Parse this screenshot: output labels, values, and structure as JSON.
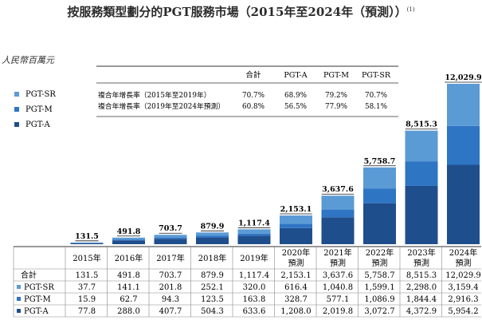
{
  "title": "按服務類型劃分的PGT服務市場（2015年至2024年（預測））",
  "title_note": "(1)",
  "unit_label": "人民幣百萬元",
  "colors": {
    "pgt_sr": "#5b9bd5",
    "pgt_m": "#2e75c4",
    "pgt_a": "#1f4e8c",
    "rule": "#333333",
    "table_line": "#888888"
  },
  "cagr_table": {
    "headers": [
      "合計",
      "PGT-A",
      "PGT-M",
      "PGT-SR"
    ],
    "rows": [
      {
        "label": "複合年增長率（2015年至2019年）",
        "values": [
          "70.7%",
          "68.9%",
          "79.2%",
          "70.7%"
        ]
      },
      {
        "label": "複合年增長率（2019年至2024年預測）",
        "values": [
          "60.8%",
          "56.5%",
          "77.9%",
          "58.1%"
        ]
      }
    ]
  },
  "chart_data": {
    "type": "bar",
    "stacked": true,
    "title": "按服務類型劃分的PGT服務市場（2015年至2024年（預測））",
    "ylabel": "人民幣百萬元",
    "categories": [
      "2015年",
      "2016年",
      "2017年",
      "2018年",
      "2019年",
      "2020年預測",
      "2021年預測",
      "2022年預測",
      "2023年預測",
      "2024年預測"
    ],
    "category_lines": [
      [
        "2015年"
      ],
      [
        "2016年"
      ],
      [
        "2017年"
      ],
      [
        "2018年"
      ],
      [
        "2019年"
      ],
      [
        "2020年",
        "預測"
      ],
      [
        "2021年",
        "預測"
      ],
      [
        "2022年",
        "預測"
      ],
      [
        "2023年",
        "預測"
      ],
      [
        "2024年",
        "預測"
      ]
    ],
    "totals": [
      131.5,
      491.8,
      703.7,
      879.9,
      1117.4,
      2153.1,
      3637.6,
      5758.7,
      8515.3,
      12029.9
    ],
    "total_labels": [
      "131.5",
      "491.8",
      "703.7",
      "879.9",
      "1,117.4",
      "2,153.1",
      "3,637.6",
      "5,758.7",
      "8,515.3",
      "12,029.9"
    ],
    "series": [
      {
        "name": "PGT-A",
        "values": [
          77.8,
          288.0,
          407.7,
          504.3,
          633.6,
          1208.0,
          2019.8,
          3072.7,
          4372.9,
          5954.2
        ],
        "labels": [
          "77.8",
          "288.0",
          "407.7",
          "504.3",
          "633.6",
          "1,208.0",
          "2,019.8",
          "3,072.7",
          "4,372.9",
          "5,954.2"
        ]
      },
      {
        "name": "PGT-M",
        "values": [
          15.9,
          62.7,
          94.3,
          123.5,
          163.8,
          328.7,
          577.1,
          1086.9,
          1844.4,
          2916.3
        ],
        "labels": [
          "15.9",
          "62.7",
          "94.3",
          "123.5",
          "163.8",
          "328.7",
          "577.1",
          "1,086.9",
          "1,844.4",
          "2,916.3"
        ]
      },
      {
        "name": "PGT-SR",
        "values": [
          37.7,
          141.1,
          201.8,
          252.1,
          320.0,
          616.4,
          1040.8,
          1599.1,
          2298.0,
          3159.4
        ],
        "labels": [
          "37.7",
          "141.1",
          "201.8",
          "252.1",
          "320.0",
          "616.4",
          "1,040.8",
          "1,599.1",
          "2,298.0",
          "3,159.4"
        ]
      }
    ],
    "legend": [
      "PGT-SR",
      "PGT-M",
      "PGT-A"
    ],
    "table_rows": [
      "合計",
      "PGT-SR",
      "PGT-M",
      "PGT-A"
    ],
    "ylim": [
      0,
      12500
    ],
    "grid": false,
    "legend_position": "left"
  }
}
